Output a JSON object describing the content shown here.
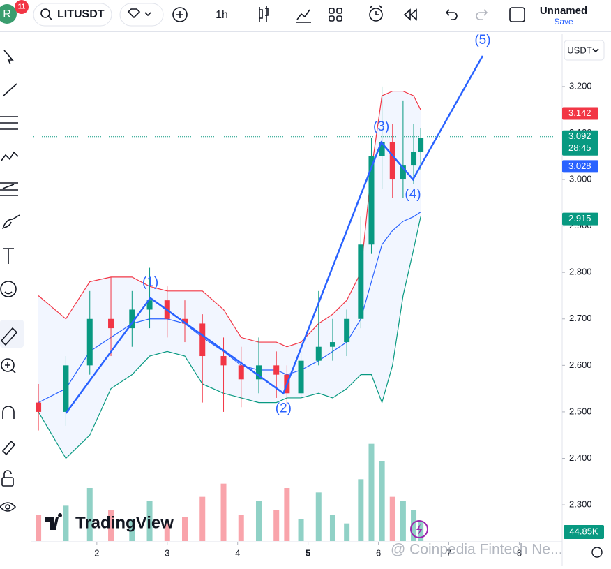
{
  "ui": {
    "avatar": "R",
    "badge": "11",
    "symbol": "LITUSDT",
    "interval": "1h",
    "layout_name": "Unnamed",
    "save": "Save",
    "currency": "USDT",
    "logo": "TradingView",
    "watermark": "@ Coinpedia Fintech Ne..."
  },
  "chart_data": {
    "type": "candlestick",
    "x": [
      1.17,
      1.56,
      1.9,
      2.2,
      2.5,
      2.75,
      3.0,
      3.25,
      3.5,
      3.8,
      4.05,
      4.3,
      4.55,
      4.7,
      4.9,
      5.15,
      5.35,
      5.55,
      5.75,
      5.9,
      6.05,
      6.2,
      6.35,
      6.5,
      6.6
    ],
    "open": [
      2.52,
      2.5,
      2.6,
      2.7,
      2.68,
      2.72,
      2.74,
      2.7,
      2.69,
      2.62,
      2.6,
      2.57,
      2.6,
      2.58,
      2.54,
      2.61,
      2.64,
      2.65,
      2.7,
      2.86,
      3.05,
      3.08,
      3.0,
      3.03,
      3.06
    ],
    "high": [
      2.56,
      2.62,
      2.76,
      2.79,
      2.76,
      2.81,
      2.77,
      2.74,
      2.71,
      2.66,
      2.64,
      2.66,
      2.63,
      2.6,
      2.63,
      2.76,
      2.7,
      2.72,
      2.92,
      3.09,
      3.2,
      3.12,
      3.17,
      3.12,
      3.11
    ],
    "low": [
      2.46,
      2.47,
      2.58,
      2.62,
      2.64,
      2.68,
      2.66,
      2.65,
      2.52,
      2.5,
      2.51,
      2.54,
      2.53,
      2.51,
      2.53,
      2.6,
      2.61,
      2.62,
      2.68,
      2.84,
      2.98,
      2.96,
      2.96,
      2.99,
      3.02
    ],
    "close": [
      2.5,
      2.6,
      2.7,
      2.68,
      2.72,
      2.74,
      2.7,
      2.69,
      2.62,
      2.6,
      2.57,
      2.6,
      2.58,
      2.54,
      2.61,
      2.64,
      2.65,
      2.7,
      2.86,
      3.05,
      3.08,
      3.0,
      3.03,
      3.06,
      3.09
    ],
    "volume": [
      60,
      80,
      120,
      70,
      50,
      90,
      40,
      55,
      100,
      130,
      60,
      90,
      70,
      120,
      50,
      110,
      60,
      40,
      140,
      220,
      180,
      100,
      90,
      70,
      44.85
    ],
    "vlim": [
      0,
      300
    ],
    "bands": {
      "upper": [
        2.75,
        2.7,
        2.78,
        2.79,
        2.79,
        2.77,
        2.76,
        2.76,
        2.76,
        2.72,
        2.66,
        2.65,
        2.65,
        2.64,
        2.65,
        2.69,
        2.71,
        2.74,
        2.8,
        3.02,
        3.18,
        3.19,
        3.19,
        3.18,
        3.15
      ],
      "middle": [
        2.52,
        2.55,
        2.63,
        2.66,
        2.69,
        2.7,
        2.7,
        2.69,
        2.66,
        2.63,
        2.6,
        2.59,
        2.59,
        2.58,
        2.59,
        2.61,
        2.63,
        2.65,
        2.7,
        2.78,
        2.86,
        2.89,
        2.91,
        2.92,
        2.93
      ],
      "lower": [
        2.5,
        2.4,
        2.45,
        2.55,
        2.58,
        2.62,
        2.63,
        2.62,
        2.56,
        2.54,
        2.53,
        2.52,
        2.52,
        2.53,
        2.53,
        2.54,
        2.53,
        2.55,
        2.58,
        2.58,
        2.52,
        2.6,
        2.75,
        2.85,
        2.92
      ],
      "upper_color": "#f23645",
      "middle_color": "#2962ff",
      "lower_color": "#089981"
    },
    "wave": {
      "x": [
        1.56,
        2.76,
        4.65,
        6.04,
        6.49,
        7.48
      ],
      "y": [
        2.497,
        2.745,
        2.54,
        3.08,
        3.0,
        3.266
      ],
      "labels": [
        null,
        "(1)",
        "(2)",
        "(3)",
        "(4)",
        "(5)"
      ],
      "color": "#2962ff"
    },
    "xlim": [
      1.1,
      8.6
    ],
    "xticks": [
      2,
      3,
      4,
      5,
      6,
      7,
      8
    ],
    "ylim": [
      2.222,
      3.314
    ],
    "yticks": [
      {
        "value": 2.3,
        "label": "2.300"
      },
      {
        "value": 2.4,
        "label": "2.400"
      },
      {
        "value": 2.5,
        "label": "2.500"
      },
      {
        "value": 2.6,
        "label": "2.600"
      },
      {
        "value": 2.7,
        "label": "2.700"
      },
      {
        "value": 2.8,
        "label": "2.800"
      },
      {
        "value": 2.9,
        "label": "2.900"
      },
      {
        "value": 3.0,
        "label": "3.000"
      },
      {
        "value": 3.1,
        "label": "3.100"
      },
      {
        "value": 3.2,
        "label": "3.200"
      }
    ],
    "price_labels": [
      {
        "value": 3.142,
        "color": "#f23645"
      },
      {
        "value": 3.092,
        "color": "#089981"
      },
      {
        "value": 3.028,
        "color": "#2962ff"
      },
      {
        "value": 2.915,
        "color": "#089981"
      }
    ],
    "countdown": "28:45",
    "volume_label": "44.85K",
    "up_color": "#089981",
    "down_color": "#f23645"
  }
}
